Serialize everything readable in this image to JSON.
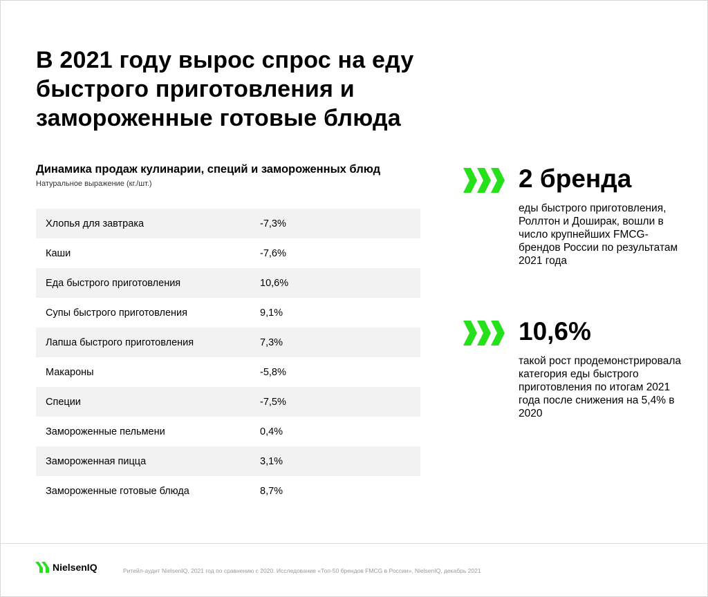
{
  "title_lines": [
    "В 2021 году вырос спрос на еду",
    "быстрого приготовления и",
    "замороженные готовые блюда"
  ],
  "table": {
    "title": "Динамика продаж кулинарии, специй и замороженных блюд",
    "subtitle": "Натуральное выражение (кг./шт.)",
    "rows": [
      {
        "name": "Хлопья для завтрака",
        "value": "-7,3%"
      },
      {
        "name": "Каши",
        "value": "-7,6%"
      },
      {
        "name": "Еда быстрого приготовления",
        "value": "10,6%"
      },
      {
        "name": "Супы быстрого приготовления",
        "value": "9,1%"
      },
      {
        "name": "Лапша быстрого приготовления",
        "value": "7,3%"
      },
      {
        "name": "Макароны",
        "value": "-5,8%"
      },
      {
        "name": "Специи",
        "value": "-7,5%"
      },
      {
        "name": "Замороженные пельмени",
        "value": "0,4%"
      },
      {
        "name": "Замороженная пицца",
        "value": "3,1%"
      },
      {
        "name": "Замороженные готовые блюда",
        "value": "8,7%"
      }
    ]
  },
  "stats": [
    {
      "headline": "2 бренда",
      "description": "еды быстрого приготовления, Роллтон и Доширак, вошли в число крупнейших FMCG-брендов России по результатам 2021 года",
      "icon": "triple-chevron-icon"
    },
    {
      "headline": "10,6%",
      "description": "такой рост продемонстрировала категория еды быстрого приготовления по итогам 2021 года после снижения на 5,4% в 2020",
      "icon": "triple-chevron-icon"
    }
  ],
  "footer": {
    "logo_text": "NielsenIQ",
    "source": "Ритейл-аудит NielsenIQ, 2021 год по сравнению с 2020. Исследование «Топ-50 брендов FMCG в России», NielsenIQ, декабрь 2021"
  },
  "colors": {
    "accent": "#25e01b",
    "row_shade": "#f2f2f2",
    "text": "#000000",
    "muted": "#9a9a9a"
  }
}
